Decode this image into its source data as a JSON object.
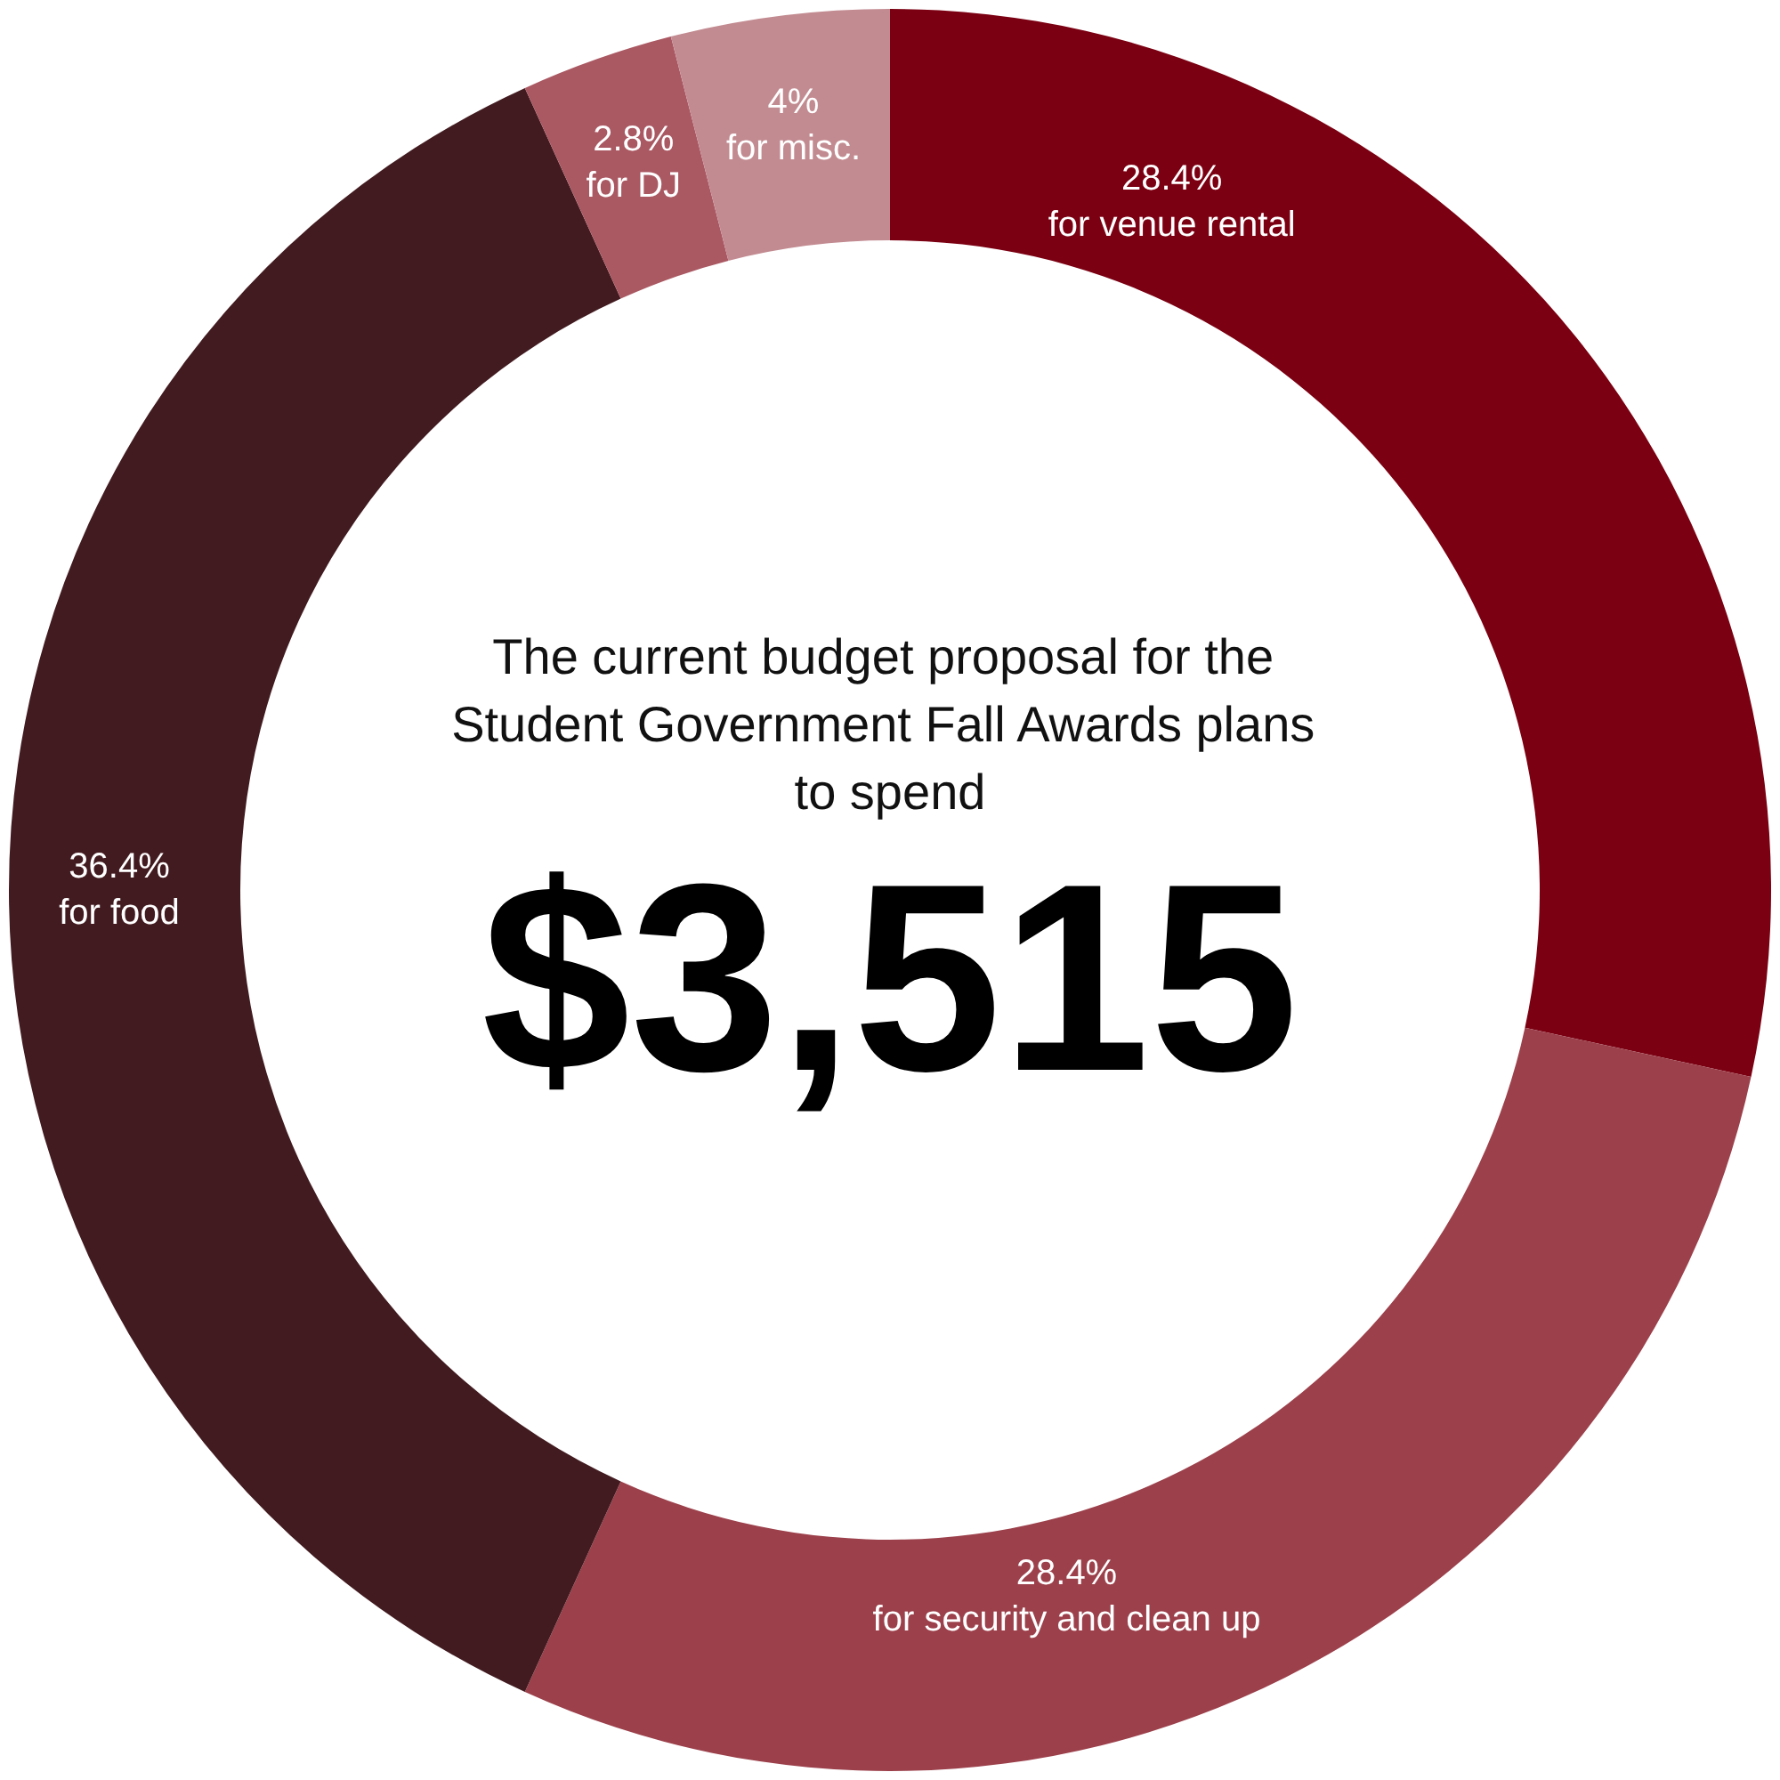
{
  "chart_data": {
    "type": "donut",
    "title": "The current budget proposal for the Student Government Fall Awards plans to spend",
    "subtitle": "$3,515",
    "categories": [
      "for venue rental",
      "for security and clean up",
      "for food",
      "for DJ",
      "for misc."
    ],
    "values": [
      28.4,
      28.4,
      36.4,
      2.8,
      4
    ],
    "colors": [
      "#7b0012",
      "#9c404b",
      "#421b20",
      "#aa5862",
      "#c28b91"
    ],
    "value_labels": [
      "28.4%",
      "28.4%",
      "36.4%",
      "2.8%",
      "4%"
    ],
    "data_labels": true,
    "legend": false
  }
}
